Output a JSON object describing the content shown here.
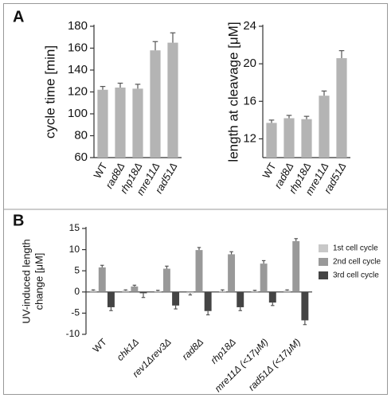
{
  "panels": [
    "A",
    "B"
  ],
  "chart_data": [
    {
      "type": "bar",
      "ylabel": "cycle time [min]",
      "categories": [
        "WT",
        "rad8Δ",
        "rhp18Δ",
        "mre11Δ",
        "rad51Δ"
      ],
      "values": [
        122,
        124,
        123,
        158,
        165
      ],
      "errors": [
        3,
        4,
        4,
        8,
        9
      ],
      "color": "#b4b4b4",
      "ylim": [
        60,
        180
      ],
      "yticks": [
        60,
        80,
        100,
        120,
        140,
        160,
        180
      ]
    },
    {
      "type": "bar",
      "ylabel": "length at cleavage [μM]",
      "categories": [
        "WT",
        "rad8Δ",
        "rhp18Δ",
        "mre11Δ",
        "rad51Δ"
      ],
      "values": [
        13.7,
        14.2,
        14.1,
        16.6,
        20.6
      ],
      "errors": [
        0.3,
        0.3,
        0.3,
        0.5,
        0.8
      ],
      "color": "#b4b4b4",
      "ylim": [
        10,
        24
      ],
      "yticks": [
        12,
        16,
        20,
        24
      ]
    },
    {
      "type": "bar",
      "ylabel": [
        "UV-induced length",
        "change [μM]"
      ],
      "categories": [
        "WT",
        "chk1Δ",
        "rev1Δrev3Δ",
        "rad8Δ",
        "rhp18Δ",
        "mre11Δ (<17μM)",
        "rad51Δ (<17μM)"
      ],
      "series": [
        {
          "name": "1st cell cycle",
          "color": "#c8c8c8",
          "values": [
            0.3,
            0.3,
            0.2,
            -0.3,
            0.2,
            0.2,
            0.3
          ],
          "errors": [
            0.2,
            0.2,
            0.2,
            0.4,
            0.3,
            0.2,
            0.2
          ]
        },
        {
          "name": "2nd cell cycle",
          "color": "#999999",
          "values": [
            5.8,
            1.3,
            5.5,
            9.9,
            8.9,
            6.7,
            12.0
          ],
          "errors": [
            0.5,
            0.3,
            0.6,
            0.6,
            0.6,
            0.7,
            0.6
          ]
        },
        {
          "name": "3rd cell cycle",
          "color": "#444444",
          "values": [
            -3.6,
            -0.3,
            -3.2,
            -4.5,
            -3.6,
            -2.5,
            -6.7
          ],
          "errors": [
            0.8,
            1.0,
            0.8,
            0.9,
            0.8,
            0.7,
            1.0
          ]
        }
      ],
      "ylim": [
        -10,
        15
      ],
      "yticks": [
        -10,
        -5,
        0,
        5,
        10,
        15
      ],
      "legend": "right"
    }
  ]
}
